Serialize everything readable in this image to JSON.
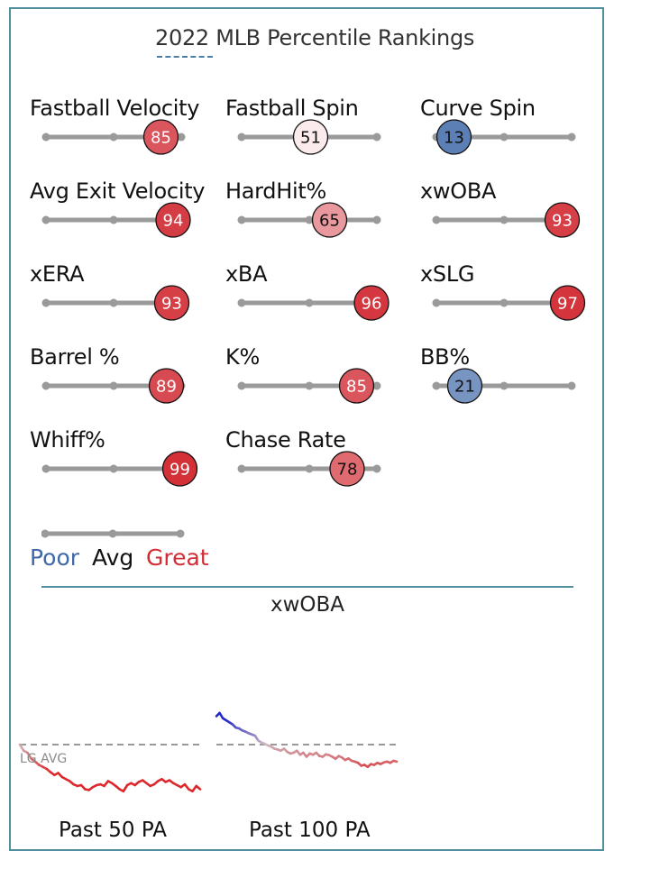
{
  "chart_data": [
    {
      "type": "percentile_sliders",
      "title": "2022 MLB Percentile Rankings",
      "metrics": [
        {
          "name": "Fastball Velocity",
          "percentile": 85
        },
        {
          "name": "Fastball Spin",
          "percentile": 51
        },
        {
          "name": "Curve Spin",
          "percentile": 13
        },
        {
          "name": "Avg Exit Velocity",
          "percentile": 94
        },
        {
          "name": "HardHit%",
          "percentile": 65
        },
        {
          "name": "xwOBA",
          "percentile": 93
        },
        {
          "name": "xERA",
          "percentile": 93
        },
        {
          "name": "xBA",
          "percentile": 96
        },
        {
          "name": "xSLG",
          "percentile": 97
        },
        {
          "name": "Barrel %",
          "percentile": 89
        },
        {
          "name": "K%",
          "percentile": 85
        },
        {
          "name": "BB%",
          "percentile": 21
        },
        {
          "name": "Whiff%",
          "percentile": 99
        },
        {
          "name": "Chase Rate",
          "percentile": 78
        }
      ],
      "legend": [
        "Poor",
        "Avg",
        "Great"
      ],
      "colors": {
        "poor": "#3f68a8",
        "great": "#d22d35",
        "track": "#9a9a9a"
      }
    },
    {
      "type": "line",
      "title": "xwOBA",
      "reference_label": "LG AVG",
      "panels": [
        {
          "label": "Past 50 PA",
          "values": [
            0.36,
            0.345,
            0.34,
            0.325,
            0.318,
            0.31,
            0.305,
            0.3,
            0.292,
            0.285,
            0.29,
            0.28,
            0.275,
            0.27,
            0.262,
            0.258,
            0.26,
            0.25,
            0.248,
            0.255,
            0.26,
            0.262,
            0.258,
            0.27,
            0.265,
            0.258,
            0.25,
            0.245,
            0.26,
            0.265,
            0.26,
            0.268,
            0.272,
            0.265,
            0.258,
            0.262,
            0.27,
            0.275,
            0.268,
            0.272,
            0.265,
            0.26,
            0.255,
            0.262,
            0.25,
            0.245,
            0.258,
            0.25
          ]
        },
        {
          "label": "Past 100 PA",
          "values": [
            0.43,
            0.438,
            0.425,
            0.42,
            0.415,
            0.41,
            0.402,
            0.4,
            0.395,
            0.392,
            0.388,
            0.385,
            0.382,
            0.37,
            0.365,
            0.362,
            0.358,
            0.355,
            0.35,
            0.348,
            0.345,
            0.35,
            0.342,
            0.338,
            0.34,
            0.345,
            0.335,
            0.34,
            0.33,
            0.338,
            0.335,
            0.34,
            0.332,
            0.33,
            0.336,
            0.334,
            0.33,
            0.325,
            0.332,
            0.328,
            0.322,
            0.326,
            0.32,
            0.318,
            0.315,
            0.308,
            0.31,
            0.305,
            0.312,
            0.31,
            0.315,
            0.312,
            0.316,
            0.318,
            0.315,
            0.32,
            0.318
          ]
        }
      ],
      "league_average": 0.36
    }
  ]
}
